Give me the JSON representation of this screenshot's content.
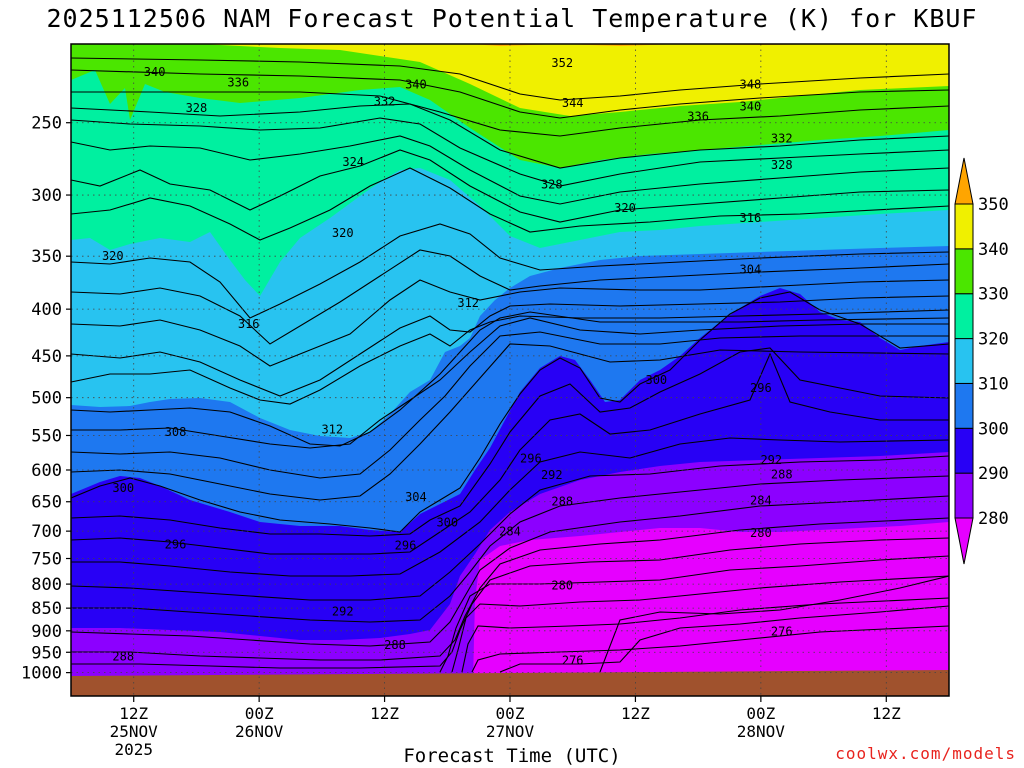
{
  "title": "2025112506 NAM Forecast Potential Temperature (K) for KBUF",
  "watermark": "coolwx.com/models",
  "chart_data": {
    "type": "contour",
    "title": "2025112506 NAM Forecast Potential Temperature (K) for KBUF",
    "xlabel": "Forecast Time (UTC)",
    "ylabel": "",
    "x_ticks": [
      {
        "hour": 6,
        "lines": [
          "12Z",
          "25NOV",
          "2025"
        ]
      },
      {
        "hour": 18,
        "lines": [
          "00Z",
          "26NOV"
        ]
      },
      {
        "hour": 30,
        "lines": [
          "12Z"
        ]
      },
      {
        "hour": 42,
        "lines": [
          "00Z",
          "27NOV"
        ]
      },
      {
        "hour": 54,
        "lines": [
          "12Z"
        ]
      },
      {
        "hour": 66,
        "lines": [
          "00Z",
          "28NOV"
        ]
      },
      {
        "hour": 78,
        "lines": [
          "12Z"
        ]
      }
    ],
    "xlim_hours": [
      0,
      84
    ],
    "y_ticks": [
      "250",
      "300",
      "350",
      "400",
      "450",
      "500",
      "550",
      "600",
      "650",
      "700",
      "750",
      "800",
      "850",
      "900",
      "950",
      "1000"
    ],
    "ylim_hPa": [
      1000,
      200
    ],
    "grid": true,
    "colorbar": {
      "labels": [
        "350",
        "340",
        "330",
        "320",
        "310",
        "300",
        "290",
        "280"
      ],
      "bands": [
        {
          "from": 280,
          "to": 290,
          "color": "#8c00ff"
        },
        {
          "from": 290,
          "to": 300,
          "color": "#2800f5"
        },
        {
          "from": 300,
          "to": 310,
          "color": "#1e78f0"
        },
        {
          "from": 310,
          "to": 320,
          "color": "#28c3f0"
        },
        {
          "from": 320,
          "to": 330,
          "color": "#00f0a0"
        },
        {
          "from": 330,
          "to": 340,
          "color": "#4be600"
        },
        {
          "from": 340,
          "to": 350,
          "color": "#f0f000"
        }
      ],
      "below_color": "#e600ff",
      "above_color": "#ffa500"
    },
    "contour_labels": [
      {
        "hour": 8,
        "p": 220,
        "text": "340"
      },
      {
        "hour": 16,
        "p": 226,
        "text": "336"
      },
      {
        "hour": 33,
        "p": 227,
        "text": "340"
      },
      {
        "hour": 47,
        "p": 215,
        "text": "352"
      },
      {
        "hour": 65,
        "p": 227,
        "text": "348"
      },
      {
        "hour": 30,
        "p": 237,
        "text": "332"
      },
      {
        "hour": 48,
        "p": 238,
        "text": "344"
      },
      {
        "hour": 65,
        "p": 240,
        "text": "340"
      },
      {
        "hour": 12,
        "p": 241,
        "text": "328"
      },
      {
        "hour": 60,
        "p": 246,
        "text": "336"
      },
      {
        "hour": 68,
        "p": 260,
        "text": "332"
      },
      {
        "hour": 27,
        "p": 276,
        "text": "324"
      },
      {
        "hour": 68,
        "p": 278,
        "text": "328"
      },
      {
        "hour": 46,
        "p": 292,
        "text": "328"
      },
      {
        "hour": 53,
        "p": 310,
        "text": "320"
      },
      {
        "hour": 65,
        "p": 318,
        "text": "316"
      },
      {
        "hour": 26,
        "p": 330,
        "text": "320"
      },
      {
        "hour": 4,
        "p": 350,
        "text": "320"
      },
      {
        "hour": 65,
        "p": 362,
        "text": "304"
      },
      {
        "hour": 38,
        "p": 394,
        "text": "312"
      },
      {
        "hour": 17,
        "p": 415,
        "text": "316"
      },
      {
        "hour": 56,
        "p": 478,
        "text": "300"
      },
      {
        "hour": 66,
        "p": 488,
        "text": "296"
      },
      {
        "hour": 10,
        "p": 545,
        "text": "308"
      },
      {
        "hour": 25,
        "p": 542,
        "text": "312"
      },
      {
        "hour": 44,
        "p": 583,
        "text": "296"
      },
      {
        "hour": 67,
        "p": 585,
        "text": "292"
      },
      {
        "hour": 46,
        "p": 608,
        "text": "292"
      },
      {
        "hour": 68,
        "p": 607,
        "text": "288"
      },
      {
        "hour": 5,
        "p": 628,
        "text": "300"
      },
      {
        "hour": 33,
        "p": 642,
        "text": "304"
      },
      {
        "hour": 47,
        "p": 650,
        "text": "288"
      },
      {
        "hour": 66,
        "p": 648,
        "text": "284"
      },
      {
        "hour": 36,
        "p": 685,
        "text": "300"
      },
      {
        "hour": 42,
        "p": 701,
        "text": "284"
      },
      {
        "hour": 66,
        "p": 703,
        "text": "280"
      },
      {
        "hour": 10,
        "p": 724,
        "text": "296"
      },
      {
        "hour": 32,
        "p": 726,
        "text": "296"
      },
      {
        "hour": 47,
        "p": 803,
        "text": "280"
      },
      {
        "hour": 26,
        "p": 857,
        "text": "292"
      },
      {
        "hour": 68,
        "p": 902,
        "text": "276"
      },
      {
        "hour": 31,
        "p": 933,
        "text": "288"
      },
      {
        "hour": 5,
        "p": 960,
        "text": "288"
      },
      {
        "hour": 48,
        "p": 970,
        "text": "276"
      }
    ]
  }
}
